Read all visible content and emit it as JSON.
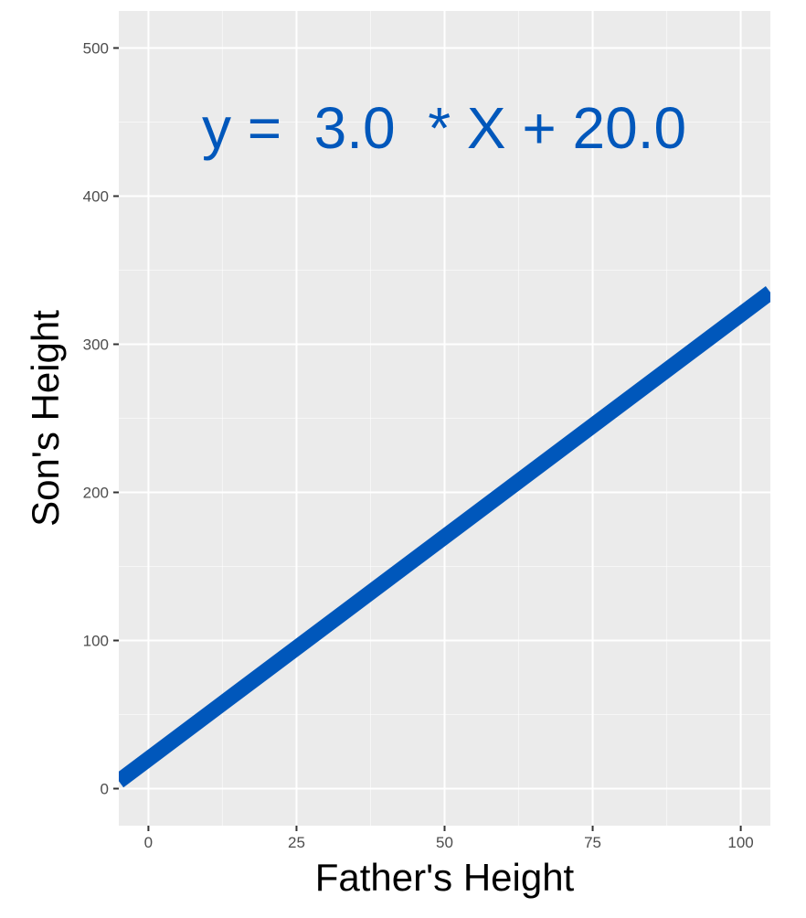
{
  "chart_data": {
    "type": "line",
    "xlabel": "Father's Height",
    "ylabel": "Son's Height",
    "annotation": "y =  3.0  * X + 20.0",
    "xlim": [
      -5,
      105
    ],
    "ylim": [
      -25,
      525
    ],
    "x_ticks": [
      0,
      25,
      50,
      75,
      100
    ],
    "y_ticks": [
      0,
      100,
      200,
      300,
      400,
      500
    ],
    "x_tick_labels": [
      "0",
      "25",
      "50",
      "75",
      "100"
    ],
    "y_tick_labels": [
      "0",
      "100",
      "200",
      "300",
      "400",
      "500"
    ],
    "grid": true,
    "series": [
      {
        "slope": 3.0,
        "intercept": 20.0,
        "x": [
          -5,
          105
        ],
        "y": [
          5,
          335
        ],
        "color": "#0057bb"
      }
    ]
  },
  "colors": {
    "panel_background": "#ebebeb",
    "grid_major": "#ffffff",
    "line": "#0057bb",
    "annotation": "#0057bb"
  }
}
